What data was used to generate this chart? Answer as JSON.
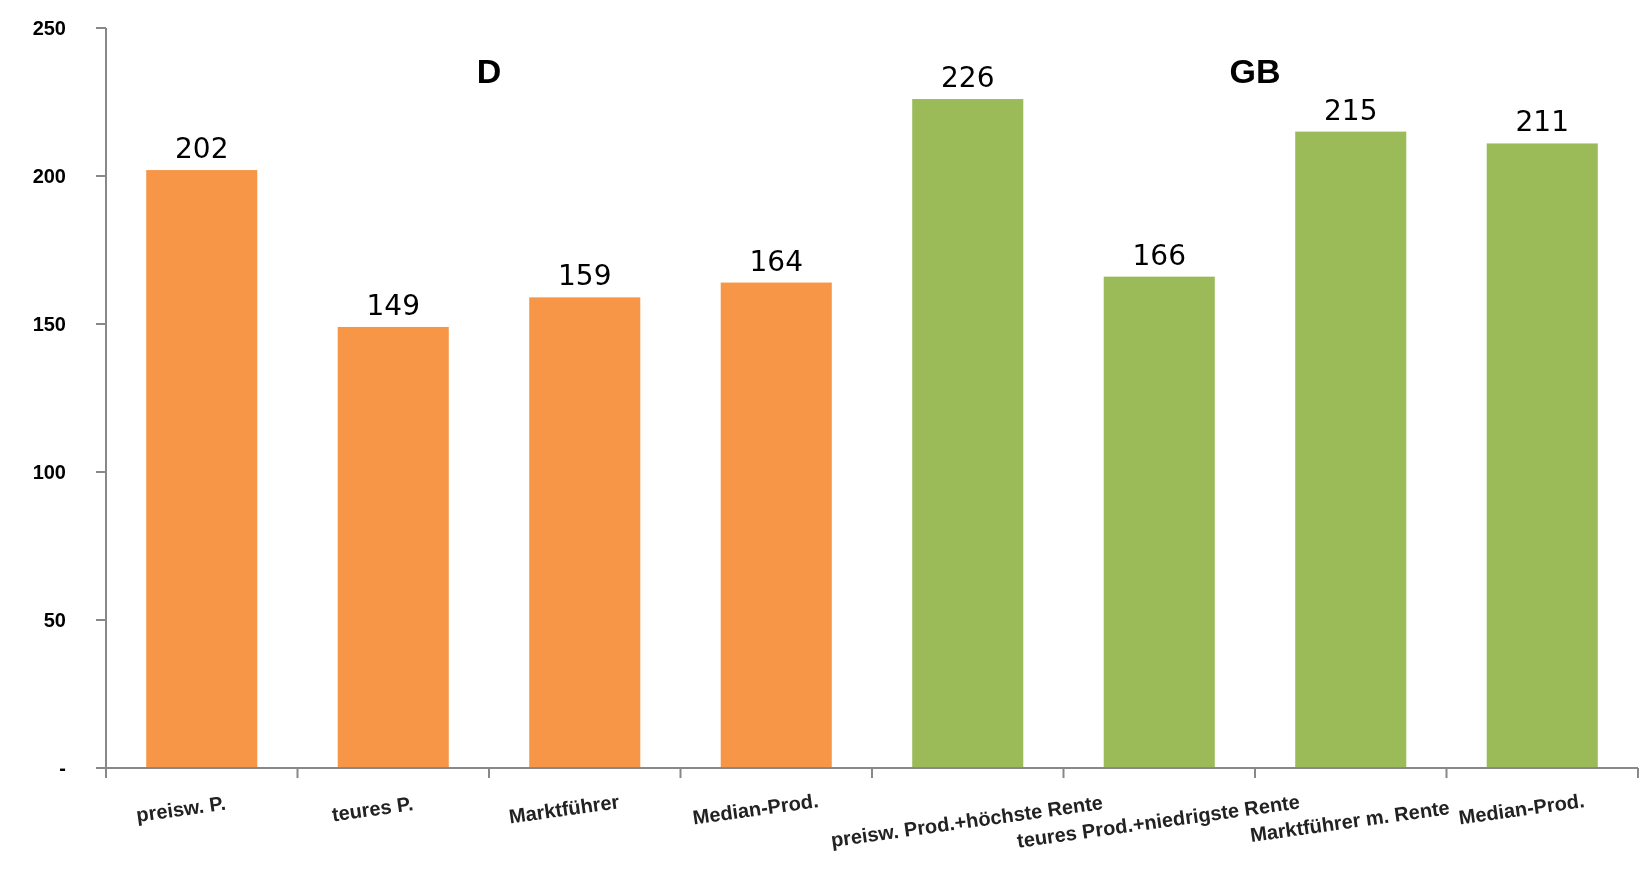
{
  "chart_data": {
    "type": "bar",
    "categories": [
      "preisw. P.",
      "teures P.",
      "Marktführer",
      "Median-Prod.",
      "preisw. Prod.+höchste Rente",
      "teures Prod.+niedrigste Rente",
      "Marktführer m. Rente",
      "Median-Prod."
    ],
    "values": [
      202,
      149,
      159,
      164,
      226,
      166,
      215,
      211
    ],
    "colors": [
      "#f79646",
      "#f79646",
      "#f79646",
      "#f79646",
      "#9bbb59",
      "#9bbb59",
      "#9bbb59",
      "#9bbb59"
    ],
    "ylim": [
      0,
      250
    ],
    "yticks": [
      {
        "value": 0,
        "label": "-"
      },
      50,
      100,
      150,
      200,
      250
    ],
    "data_labels": true,
    "annotations": [
      "D",
      "GB"
    ]
  }
}
